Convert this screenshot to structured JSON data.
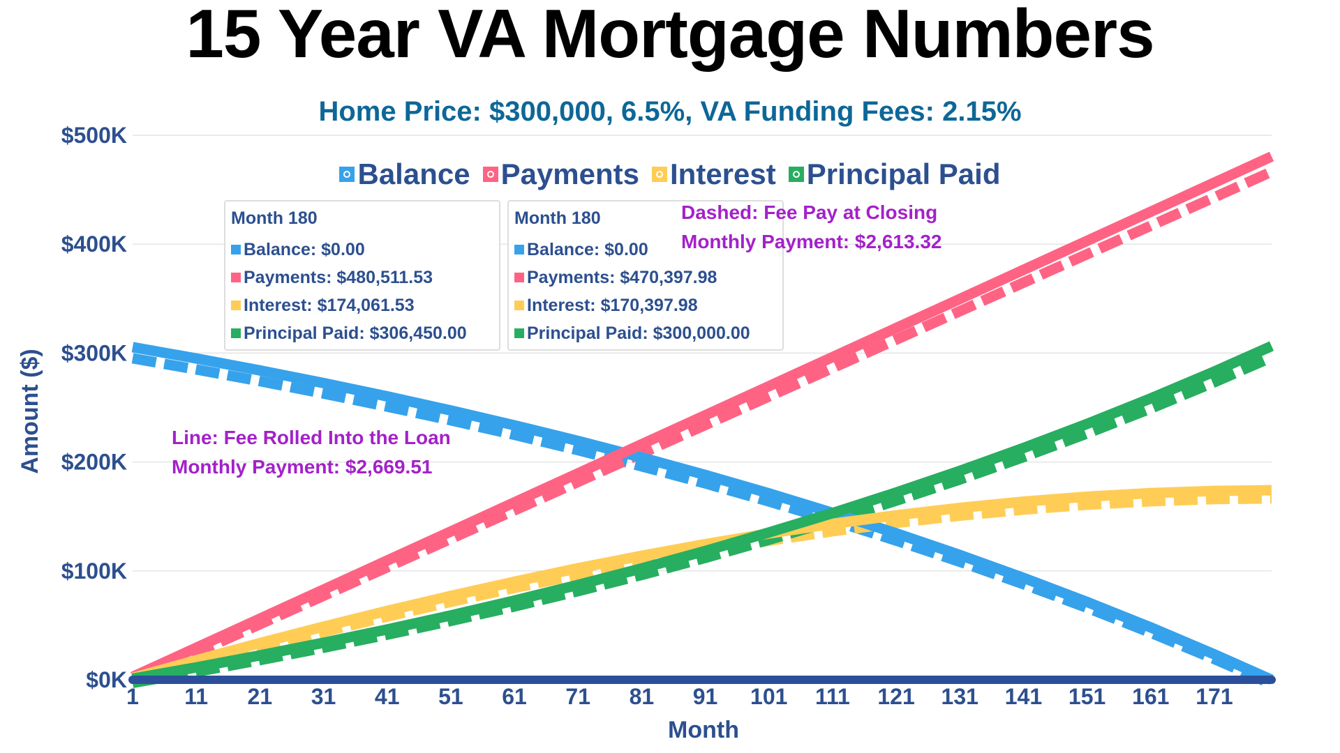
{
  "chart_data": {
    "type": "line",
    "title": "15 Year VA Mortgage Numbers",
    "subtitle": "Home Price: $300,000, 6.5%, VA Funding Fees: 2.15%",
    "xlabel": "Month",
    "ylabel": "Amount ($)",
    "ylim": [
      0,
      500000
    ],
    "xlim": [
      1,
      180
    ],
    "yticks": [
      "$0K",
      "$100K",
      "$200K",
      "$300K",
      "$400K",
      "$500K"
    ],
    "xticks": [
      "1",
      "11",
      "21",
      "31",
      "41",
      "51",
      "61",
      "71",
      "81",
      "91",
      "101",
      "111",
      "121",
      "131",
      "141",
      "151",
      "161",
      "171"
    ],
    "grid": true,
    "legend_position": "top",
    "x": [
      1,
      11,
      21,
      31,
      41,
      51,
      61,
      71,
      81,
      91,
      101,
      111,
      121,
      131,
      141,
      151,
      161,
      171,
      180
    ],
    "series": [
      {
        "name": "Balance",
        "style": "solid",
        "color": "#36a2eb",
        "values": [
          305440,
          295039,
          284060,
          272472,
          260240,
          247330,
          233704,
          219320,
          204138,
          188114,
          171201,
          153349,
          134505,
          114616,
          93623,
          71464,
          48076,
          23390,
          0
        ]
      },
      {
        "name": "Payments",
        "style": "solid",
        "color": "#ff6384",
        "values": [
          2670,
          29365,
          56060,
          82755,
          109450,
          136145,
          162840,
          189535,
          216230,
          242925,
          269619,
          296316,
          323011,
          349706,
          376401,
          403096,
          429791,
          456486,
          480511.53
        ]
      },
      {
        "name": "Interest",
        "style": "solid",
        "color": "#ffcd56",
        "values": [
          1660,
          17954,
          33670,
          48777,
          63240,
          77025,
          90094,
          102405,
          113918,
          124589,
          134370,
          143215,
          151066,
          157872,
          163574,
          168110,
          171417,
          173426,
          174061.53
        ]
      },
      {
        "name": "Principal Paid",
        "style": "solid",
        "color": "#27ae60",
        "values": [
          1010,
          11411,
          22390,
          33978,
          46210,
          59120,
          72746,
          87130,
          102312,
          118336,
          135249,
          153101,
          171945,
          191834,
          212827,
          234986,
          258374,
          283060,
          306450
        ]
      },
      {
        "name": "Balance",
        "style": "dashed",
        "color": "#36a2eb",
        "values": [
          299012,
          288828,
          278081,
          266736,
          254763,
          242124,
          228785,
          214704,
          199842,
          184155,
          167598,
          150121,
          131674,
          112204,
          91652,
          69960,
          47063,
          22896,
          0
        ]
      },
      {
        "name": "Payments",
        "style": "dashed",
        "color": "#ff6384",
        "values": [
          2613,
          28747,
          54880,
          81013,
          107146,
          133279,
          159413,
          185546,
          211679,
          237812,
          263945,
          290079,
          316212,
          342345,
          368478,
          394611,
          420745,
          446878,
          470397.98
        ]
      },
      {
        "name": "Interest",
        "style": "dashed",
        "color": "#ffcd56",
        "values": [
          1625,
          17575,
          32961,
          47749,
          61909,
          75403,
          88198,
          100250,
          111521,
          121967,
          131543,
          140200,
          147886,
          154549,
          160130,
          164571,
          167808,
          169774,
          170397.98
        ]
      },
      {
        "name": "Principal Paid",
        "style": "dashed",
        "color": "#27ae60",
        "values": [
          988,
          11172,
          21919,
          33264,
          45237,
          57876,
          71215,
          85296,
          100158,
          115845,
          132402,
          149879,
          168326,
          187796,
          208348,
          230040,
          252937,
          277104,
          300000
        ]
      }
    ],
    "legend": [
      {
        "label": "Balance",
        "color": "#36a2eb"
      },
      {
        "label": "Payments",
        "color": "#ff6384"
      },
      {
        "label": "Interest",
        "color": "#ffcd56"
      },
      {
        "label": "Principal Paid",
        "color": "#27ae60"
      }
    ],
    "tooltips": [
      {
        "title": "Month 180",
        "rows": [
          "Balance: $0.00",
          "Payments: $480,511.53",
          "Interest: $174,061.53",
          "Principal Paid: $306,450.00"
        ]
      },
      {
        "title": "Month 180",
        "rows": [
          "Balance: $0.00",
          "Payments: $470,397.98",
          "Interest: $170,397.98",
          "Principal Paid: $300,000.00"
        ]
      }
    ],
    "annotations": {
      "dashed_line1": "Dashed: Fee Pay at Closing",
      "dashed_line2": "Monthly Payment: $2,613.32",
      "solid_line1": "Line: Fee Rolled Into the Loan",
      "solid_line2": "Monthly Payment: $2,669.51"
    },
    "axis_color": "#2c4f9a",
    "text_color": "#2c4f8f"
  }
}
